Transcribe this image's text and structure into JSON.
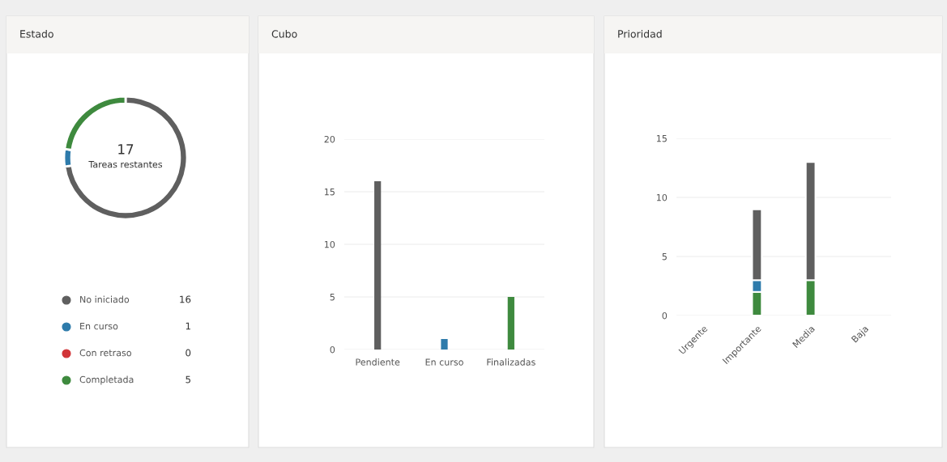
{
  "chart_data": [
    {
      "type": "donut",
      "title": "Estado",
      "categories": [
        "No iniciado",
        "En curso",
        "Con retraso",
        "Completada"
      ],
      "values": [
        16,
        1,
        0,
        5
      ],
      "colors": [
        "#5f5f5f",
        "#2e7bab",
        "#d13438",
        "#3e8a3e"
      ],
      "value_labels": [
        "16",
        "1",
        "0",
        "5"
      ],
      "annotations": [
        "17",
        "Tareas restantes"
      ],
      "legend": "bottom"
    },
    {
      "type": "bar",
      "title": "Cubo",
      "categories": [
        "Pendiente",
        "En curso",
        "Finalizadas"
      ],
      "values": [
        16,
        1,
        5
      ],
      "colors": [
        "#5f5f5f",
        "#2e7bab",
        "#3e8a3e"
      ],
      "ylim": [
        0,
        20
      ],
      "yticks": [
        0,
        5,
        10,
        15,
        20
      ],
      "grid": "y"
    },
    {
      "type": "bar",
      "title": "Prioridad",
      "categories": [
        "Urgente",
        "Importante",
        "Media",
        "Baja"
      ],
      "stacked": true,
      "series": [
        {
          "color": "#3e8a3e",
          "values": [
            0,
            2,
            3,
            0
          ]
        },
        {
          "color": "#2e7bab",
          "values": [
            0,
            1,
            0,
            0
          ]
        },
        {
          "color": "#5f5f5f",
          "values": [
            0,
            6,
            10,
            0
          ]
        }
      ],
      "ylim": [
        0,
        15
      ],
      "yticks": [
        0,
        5,
        10,
        15
      ],
      "grid": "y"
    }
  ]
}
